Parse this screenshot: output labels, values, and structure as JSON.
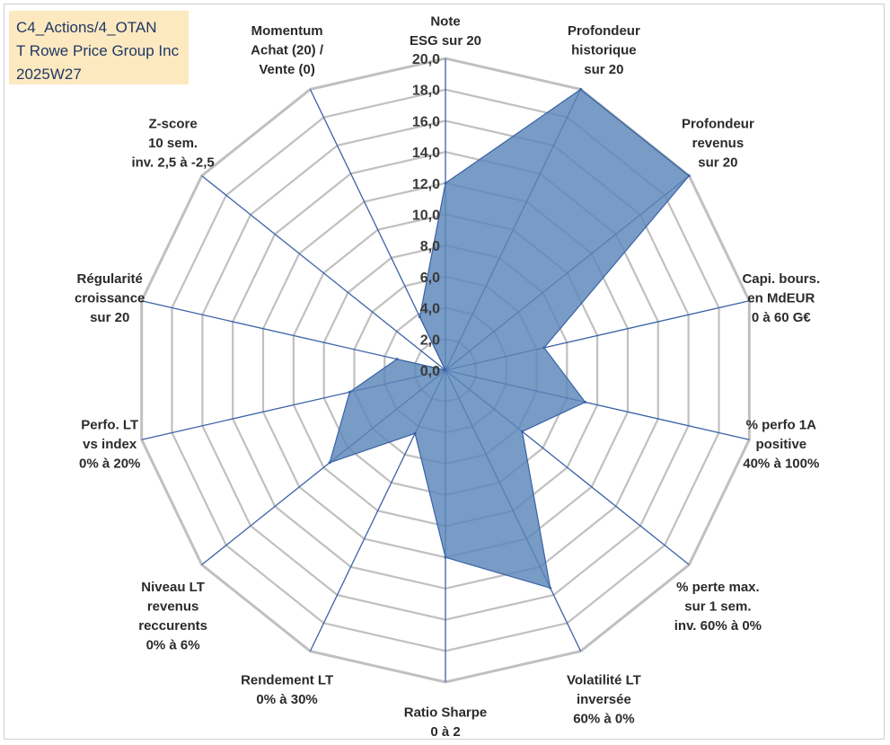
{
  "title_lines": [
    "C4_Actions/4_OTAN",
    "T Rowe Price Group Inc",
    "2025W27"
  ],
  "chart_data": {
    "type": "radar",
    "rmin": 0,
    "rmax": 20,
    "tick_step": 2,
    "tick_labels": [
      "0,0",
      "2,0",
      "4,0",
      "6,0",
      "8,0",
      "10,0",
      "12,0",
      "14,0",
      "16,0",
      "18,0",
      "20,0"
    ],
    "grid": true,
    "fill_color": "#5a86b8",
    "line_color": "#3a62a7",
    "grid_color": "#c0c0c0",
    "axes": [
      {
        "label": [
          "Note",
          "ESG sur 20"
        ],
        "value": 12.0
      },
      {
        "label": [
          "Profondeur",
          "historique",
          "sur 20"
        ],
        "value": 20.0
      },
      {
        "label": [
          "Profondeur",
          "revenus",
          "sur 20"
        ],
        "value": 20.0
      },
      {
        "label": [
          "Capi. bours.",
          "en MdEUR",
          "0 à 60 G€"
        ],
        "value": 6.5
      },
      {
        "label": [
          "% perfo 1A",
          "positive",
          "40% à 100%"
        ],
        "value": 9.2
      },
      {
        "label": [
          "% perte max.",
          "sur 1 sem.",
          "inv. 60% à 0%"
        ],
        "value": 6.3
      },
      {
        "label": [
          "Volatilité LT",
          "inversée",
          "60% à 0%"
        ],
        "value": 15.5
      },
      {
        "label": [
          "Ratio Sharpe",
          "0 à 2"
        ],
        "value": 12.0
      },
      {
        "label": [
          "Rendement LT",
          "0% à 30%"
        ],
        "value": 4.5
      },
      {
        "label": [
          "Niveau LT",
          "revenus",
          "reccurents",
          "0% à 6%"
        ],
        "value": 9.5
      },
      {
        "label": [
          "Perfo. LT",
          "vs index",
          "0% à 20%"
        ],
        "value": 6.3
      },
      {
        "label": [
          "Régularité",
          "croissance",
          "sur 20"
        ],
        "value": 3.2
      },
      {
        "label": [
          "Z-score",
          "10 sem.",
          "inv. 2,5 à -2,5"
        ],
        "value": 0.0
      },
      {
        "label": [
          "Momentum",
          "Achat (20) /",
          "Vente (0)"
        ],
        "value": 3.8
      }
    ]
  }
}
